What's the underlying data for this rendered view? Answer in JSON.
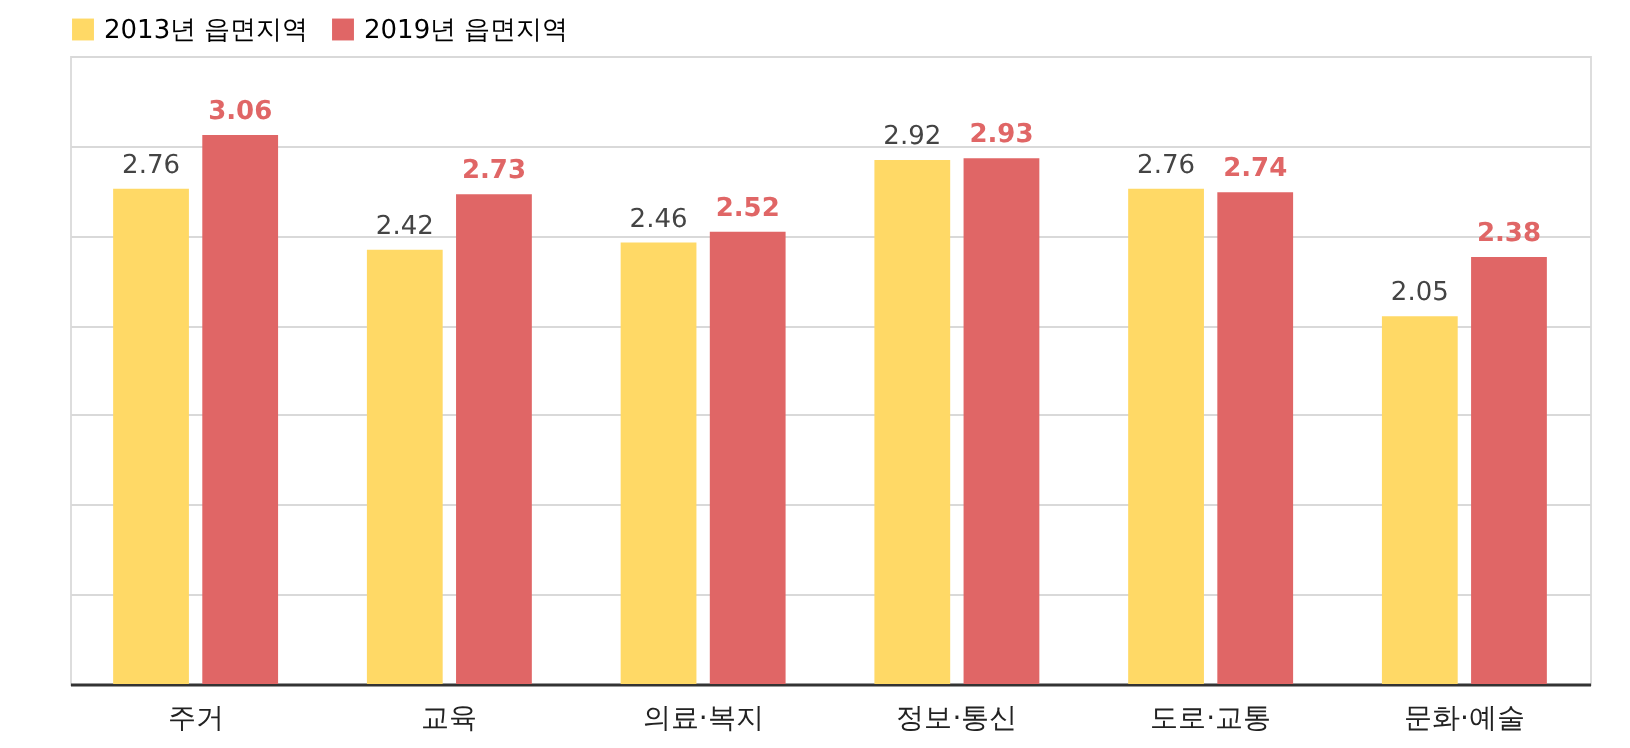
{
  "chart_data": {
    "type": "bar",
    "categories": [
      "주거",
      "교육",
      "의료·복지",
      "정보·통신",
      "도로·교통",
      "문화·예술"
    ],
    "series": [
      {
        "name": "2013년 읍면지역",
        "color": "#ffd966",
        "values": [
          2.76,
          2.42,
          2.46,
          2.92,
          2.76,
          2.05
        ]
      },
      {
        "name": "2019년 읍면지역",
        "color": "#e06666",
        "values": [
          3.06,
          2.73,
          2.52,
          2.93,
          2.74,
          2.38
        ]
      }
    ],
    "ylim": [
      0,
      3.5
    ],
    "yticks": [
      {
        "value": 0,
        "label": null
      },
      {
        "value": 0.5,
        "label": null
      },
      {
        "value": 1,
        "label": null
      },
      {
        "value": 1.5,
        "label": null
      },
      {
        "value": 2,
        "label": null
      },
      {
        "value": 2.5,
        "label": null
      },
      {
        "value": 3,
        "label": null
      },
      {
        "value": 3.5,
        "label": null
      }
    ],
    "tick_labels": "x",
    "grid": "y",
    "legend": "top left",
    "data_labels": true
  }
}
